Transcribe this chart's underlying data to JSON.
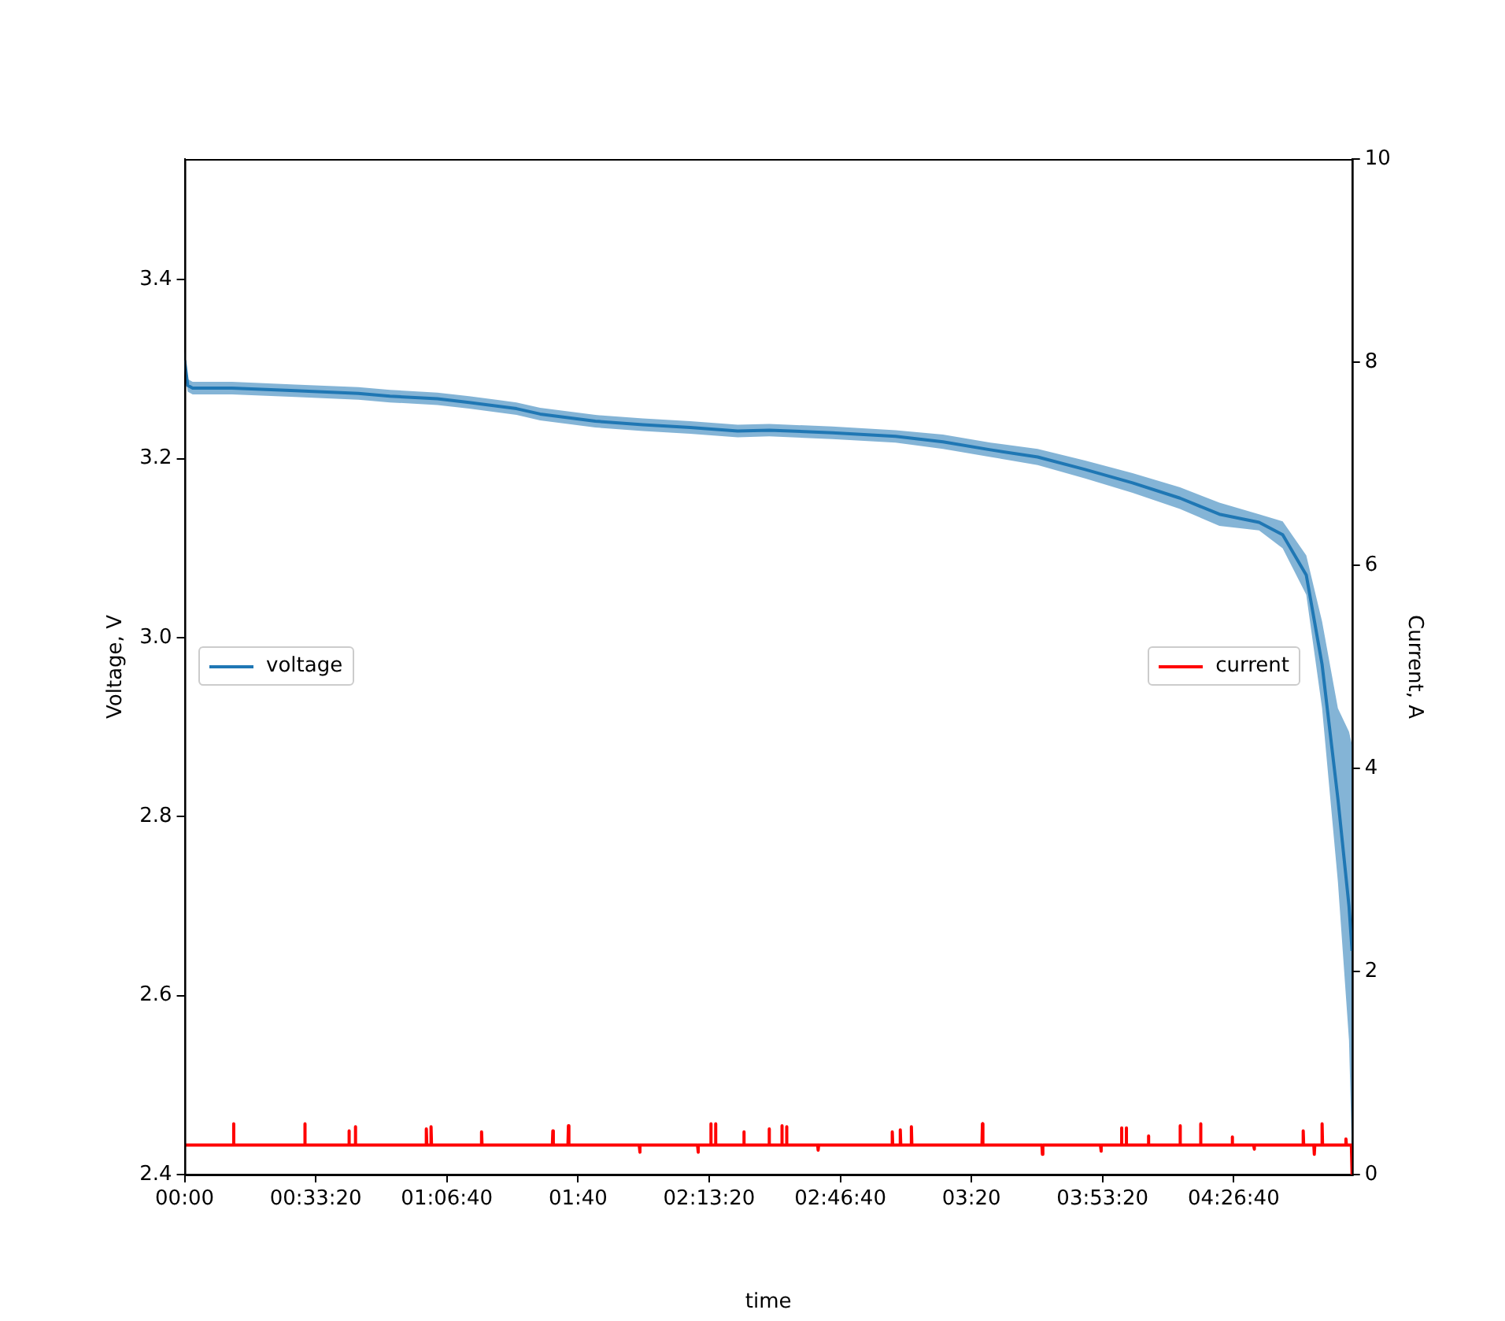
{
  "chart_data": {
    "type": "line",
    "xlabel": "time",
    "ylabel": "Voltage, V",
    "y2label": "Current, A",
    "xlim": [
      0,
      4.946
    ],
    "xticks": [
      {
        "value": 0,
        "label": "00:00"
      },
      {
        "value": 0.5556,
        "label": "00:33:20"
      },
      {
        "value": 1.1111,
        "label": "01:06:40"
      },
      {
        "value": 1.6667,
        "label": "01:40"
      },
      {
        "value": 2.2222,
        "label": "02:13:20"
      },
      {
        "value": 2.7778,
        "label": "02:46:40"
      },
      {
        "value": 3.3333,
        "label": "03:20"
      },
      {
        "value": 3.8889,
        "label": "03:53:20"
      },
      {
        "value": 4.4444,
        "label": "04:26:40"
      }
    ],
    "ylim": [
      2.4,
      3.535
    ],
    "yticks": [
      2.4,
      2.6,
      2.8,
      {
        "value": 3.0,
        "label": "3.0"
      },
      3.2,
      3.4
    ],
    "y2lim": [
      0,
      10
    ],
    "y2ticks": [
      0,
      2,
      4,
      6,
      8,
      10
    ],
    "grid": false,
    "legend": "center",
    "marker": "none",
    "line_style": "solid",
    "series": [
      {
        "name": "voltage",
        "color": "#1f77b4",
        "axis": "y",
        "x": [
          0,
          0.013,
          0.034,
          0.201,
          0.469,
          0.736,
          0.87,
          1.071,
          1.205,
          1.406,
          1.506,
          1.74,
          1.941,
          2.142,
          2.343,
          2.477,
          2.744,
          3.012,
          3.213,
          3.414,
          3.614,
          3.815,
          4.016,
          4.217,
          4.384,
          4.552,
          4.652,
          4.752,
          4.819,
          4.886,
          4.933,
          4.946
        ],
        "values": [
          3.31,
          3.282,
          3.279,
          3.279,
          3.276,
          3.273,
          3.27,
          3.267,
          3.263,
          3.256,
          3.25,
          3.242,
          3.238,
          3.235,
          3.231,
          3.232,
          3.229,
          3.225,
          3.219,
          3.21,
          3.202,
          3.188,
          3.173,
          3.156,
          3.138,
          3.129,
          3.115,
          3.07,
          2.97,
          2.82,
          2.7,
          2.65
        ],
        "lower": [
          3.3,
          3.275,
          3.272,
          3.272,
          3.269,
          3.266,
          3.263,
          3.26,
          3.256,
          3.249,
          3.243,
          3.235,
          3.231,
          3.228,
          3.224,
          3.225,
          3.222,
          3.218,
          3.211,
          3.202,
          3.193,
          3.178,
          3.162,
          3.144,
          3.125,
          3.12,
          3.1,
          3.048,
          2.921,
          2.727,
          2.55,
          2.42
        ],
        "upper": [
          3.32,
          3.289,
          3.286,
          3.286,
          3.283,
          3.28,
          3.277,
          3.274,
          3.27,
          3.263,
          3.257,
          3.249,
          3.245,
          3.242,
          3.238,
          3.239,
          3.236,
          3.232,
          3.227,
          3.218,
          3.211,
          3.198,
          3.184,
          3.168,
          3.151,
          3.138,
          3.13,
          3.092,
          3.018,
          2.921,
          2.895,
          2.88
        ]
      },
      {
        "name": "current",
        "color": "#ff0000",
        "axis": "y2",
        "x": [
          0,
          0.205,
          0.207,
          0.209,
          0.507,
          0.509,
          0.511,
          0.694,
          0.696,
          0.698,
          0.721,
          0.723,
          0.725,
          1.022,
          1.024,
          1.026,
          1.042,
          1.044,
          1.046,
          1.256,
          1.258,
          1.26,
          1.558,
          1.56,
          1.562,
          1.624,
          1.626,
          1.628,
          1.926,
          1.928,
          1.93,
          2.173,
          2.175,
          2.177,
          2.227,
          2.229,
          2.231,
          2.247,
          2.249,
          2.251,
          2.367,
          2.369,
          2.371,
          2.474,
          2.476,
          2.478,
          2.528,
          2.53,
          2.532,
          2.548,
          2.55,
          2.552,
          2.682,
          2.684,
          2.686,
          2.996,
          2.998,
          3.0,
          3.03,
          3.032,
          3.034,
          3.077,
          3.079,
          3.081,
          3.378,
          3.38,
          3.382,
          3.632,
          3.634,
          3.636,
          3.88,
          3.882,
          3.884,
          3.967,
          3.969,
          3.971,
          3.987,
          3.989,
          3.991,
          4.081,
          4.083,
          4.085,
          4.215,
          4.217,
          4.219,
          4.302,
          4.304,
          4.306,
          4.436,
          4.438,
          4.44,
          4.529,
          4.531,
          4.533,
          4.737,
          4.739,
          4.741,
          4.784,
          4.786,
          4.788,
          4.817,
          4.819,
          4.821,
          4.918,
          4.92,
          4.922,
          4.943,
          4.946
        ],
        "values": [
          0.29,
          0.29,
          0.5,
          0.29,
          0.29,
          0.5,
          0.29,
          0.29,
          0.43,
          0.29,
          0.29,
          0.47,
          0.29,
          0.29,
          0.45,
          0.29,
          0.29,
          0.47,
          0.29,
          0.29,
          0.42,
          0.29,
          0.29,
          0.43,
          0.29,
          0.29,
          0.48,
          0.29,
          0.29,
          0.22,
          0.29,
          0.29,
          0.22,
          0.29,
          0.29,
          0.5,
          0.29,
          0.29,
          0.5,
          0.29,
          0.29,
          0.42,
          0.29,
          0.29,
          0.45,
          0.29,
          0.29,
          0.48,
          0.29,
          0.29,
          0.47,
          0.29,
          0.29,
          0.24,
          0.29,
          0.29,
          0.42,
          0.29,
          0.29,
          0.44,
          0.29,
          0.29,
          0.47,
          0.29,
          0.29,
          0.5,
          0.29,
          0.29,
          0.2,
          0.29,
          0.29,
          0.23,
          0.29,
          0.29,
          0.46,
          0.29,
          0.29,
          0.46,
          0.29,
          0.29,
          0.38,
          0.29,
          0.29,
          0.48,
          0.29,
          0.29,
          0.5,
          0.29,
          0.29,
          0.37,
          0.29,
          0.29,
          0.25,
          0.29,
          0.29,
          0.43,
          0.29,
          0.29,
          0.2,
          0.29,
          0.29,
          0.5,
          0.29,
          0.29,
          0.35,
          0.29,
          0.29,
          0
        ]
      }
    ]
  }
}
